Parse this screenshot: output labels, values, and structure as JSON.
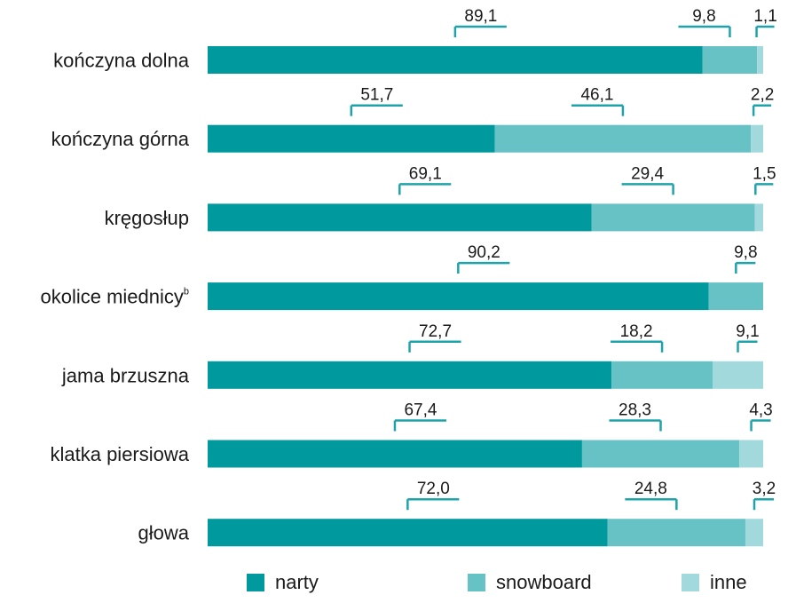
{
  "chart_data": {
    "type": "bar",
    "orientation": "horizontal",
    "stacked": true,
    "categories": [
      {
        "label": "kończyna dolna",
        "sup": ""
      },
      {
        "label": "kończyna górna",
        "sup": ""
      },
      {
        "label": "kręgosłup",
        "sup": ""
      },
      {
        "label": "okolice miednicy",
        "sup": "b"
      },
      {
        "label": "jama brzuszna",
        "sup": ""
      },
      {
        "label": "klatka piersiowa",
        "sup": ""
      },
      {
        "label": "głowa",
        "sup": ""
      }
    ],
    "series": [
      {
        "name": "narty",
        "color": "#00999d",
        "values": [
          89.1,
          51.7,
          69.1,
          90.2,
          72.7,
          67.4,
          72.0
        ],
        "labels": [
          "89,1",
          "51,7",
          "69,1",
          "90,2",
          "72,7",
          "67,4",
          "72,0"
        ]
      },
      {
        "name": "snowboard",
        "color": "#67c2c6",
        "values": [
          9.8,
          46.1,
          29.4,
          9.8,
          18.2,
          28.3,
          24.8
        ],
        "labels": [
          "9,8",
          "46,1",
          "29,4",
          "9,8",
          "18,2",
          "28,3",
          "24,8"
        ]
      },
      {
        "name": "inne",
        "color": "#a2d9dd",
        "values": [
          1.1,
          2.2,
          1.5,
          0,
          9.1,
          4.3,
          3.2
        ],
        "labels": [
          "1,1",
          "2,2",
          "1,5",
          "",
          "9,1",
          "4,3",
          "3,2"
        ]
      }
    ],
    "xlim": [
      0,
      100
    ],
    "bracket_color": "#1fa3ab",
    "legend_position": "bottom"
  }
}
